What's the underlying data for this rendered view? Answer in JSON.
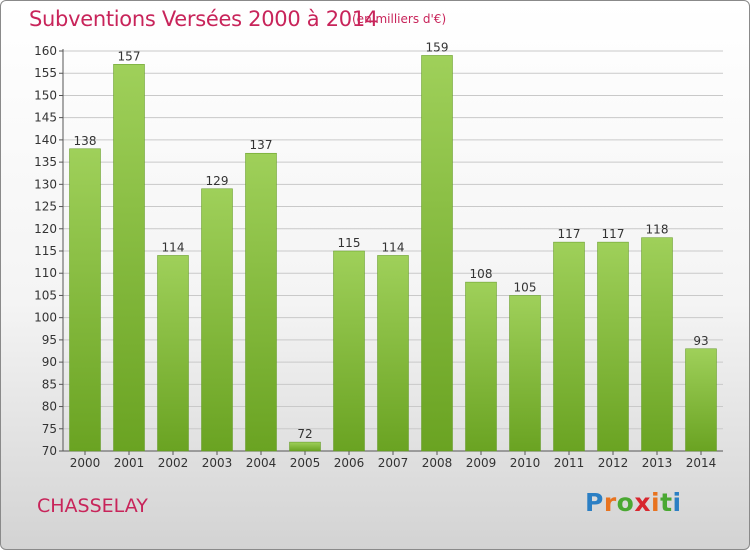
{
  "title": "Subventions Versées 2000 à 2014",
  "subtitle": "(en milliers d'€)",
  "commune": "CHASSELAY",
  "logo": {
    "text": "Proxiti",
    "letter_colors": [
      "#2b7fc4",
      "#e8731f",
      "#4aa832",
      "#d8262e",
      "#e8731f",
      "#4aa832",
      "#2b7fc4"
    ]
  },
  "colors": {
    "title": "#c8245a",
    "bar_top": "#9fd05a",
    "bar_bottom": "#6aa322",
    "grid": "#c9c9c9"
  },
  "chart_data": {
    "type": "bar",
    "categories": [
      "2000",
      "2001",
      "2002",
      "2003",
      "2004",
      "2005",
      "2006",
      "2007",
      "2008",
      "2009",
      "2010",
      "2011",
      "2012",
      "2013",
      "2014"
    ],
    "values": [
      138,
      157,
      114,
      129,
      137,
      72,
      115,
      114,
      159,
      108,
      105,
      117,
      117,
      118,
      93
    ],
    "ylim": [
      70,
      160
    ],
    "yticks": [
      70,
      75,
      80,
      85,
      90,
      95,
      100,
      105,
      110,
      115,
      120,
      125,
      130,
      135,
      140,
      145,
      150,
      155,
      160
    ],
    "grid": true
  }
}
